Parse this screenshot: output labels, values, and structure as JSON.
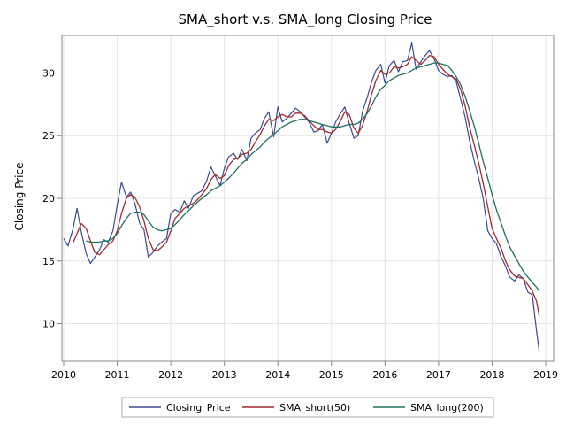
{
  "chart_data": {
    "type": "line",
    "title": "SMA_short v.s. SMA_long Closing Price",
    "xlabel": "",
    "ylabel": "Closing Price",
    "xlim": [
      2010.0,
      2019.0
    ],
    "ylim": [
      7.0,
      33.0
    ],
    "x_ticks": [
      "2010",
      "2011",
      "2012",
      "2013",
      "2014",
      "2015",
      "2016",
      "2017",
      "2018",
      "2019"
    ],
    "y_ticks": [
      "10",
      "15",
      "20",
      "25",
      "30"
    ],
    "grid": true,
    "legend_placement": "bottom",
    "series": [
      {
        "name": "Closing_Price",
        "color": "#3c4a92",
        "x": [
          2010.0,
          2010.08,
          2010.17,
          2010.25,
          2010.33,
          2010.42,
          2010.5,
          2010.58,
          2010.67,
          2010.75,
          2010.83,
          2010.92,
          2011.0,
          2011.08,
          2011.17,
          2011.25,
          2011.33,
          2011.42,
          2011.5,
          2011.58,
          2011.67,
          2011.75,
          2011.83,
          2011.92,
          2012.0,
          2012.08,
          2012.17,
          2012.25,
          2012.33,
          2012.42,
          2012.5,
          2012.58,
          2012.67,
          2012.75,
          2012.83,
          2012.92,
          2013.0,
          2013.08,
          2013.17,
          2013.25,
          2013.33,
          2013.42,
          2013.5,
          2013.58,
          2013.67,
          2013.75,
          2013.83,
          2013.92,
          2014.0,
          2014.08,
          2014.17,
          2014.25,
          2014.33,
          2014.42,
          2014.5,
          2014.58,
          2014.67,
          2014.75,
          2014.83,
          2014.92,
          2015.0,
          2015.08,
          2015.17,
          2015.25,
          2015.33,
          2015.42,
          2015.5,
          2015.58,
          2015.67,
          2015.75,
          2015.83,
          2015.92,
          2016.0,
          2016.08,
          2016.17,
          2016.25,
          2016.33,
          2016.42,
          2016.5,
          2016.58,
          2016.67,
          2016.75,
          2016.83,
          2016.92,
          2017.0,
          2017.08,
          2017.17,
          2017.25,
          2017.33,
          2017.42,
          2017.5,
          2017.58,
          2017.67,
          2017.75,
          2017.83,
          2017.92,
          2018.0,
          2018.08,
          2018.17,
          2018.25,
          2018.33,
          2018.42,
          2018.5,
          2018.58,
          2018.67,
          2018.75,
          2018.83,
          2018.88
        ],
        "values": [
          16.8,
          16.2,
          17.5,
          19.2,
          17.3,
          15.6,
          14.8,
          15.3,
          15.9,
          16.7,
          16.5,
          17.4,
          19.5,
          21.3,
          20.1,
          20.5,
          19.6,
          18.0,
          17.5,
          15.3,
          15.7,
          16.2,
          16.5,
          16.8,
          18.8,
          19.1,
          18.9,
          19.8,
          19.2,
          20.2,
          20.4,
          20.6,
          21.4,
          22.5,
          21.8,
          21.0,
          22.4,
          23.3,
          23.6,
          23.1,
          23.9,
          23.0,
          24.8,
          25.2,
          25.5,
          26.4,
          26.9,
          24.9,
          27.3,
          26.1,
          26.4,
          26.8,
          27.2,
          26.9,
          26.5,
          26.1,
          25.3,
          25.4,
          25.9,
          24.4,
          25.2,
          26.1,
          26.8,
          27.3,
          26.0,
          24.8,
          25.0,
          26.9,
          28.1,
          29.3,
          30.2,
          30.7,
          29.2,
          30.6,
          31.0,
          30.1,
          30.9,
          31.0,
          32.4,
          30.3,
          30.9,
          31.4,
          31.8,
          31.1,
          30.2,
          29.9,
          29.7,
          29.8,
          29.3,
          27.8,
          26.4,
          24.6,
          22.9,
          21.6,
          20.1,
          17.4,
          16.8,
          16.4,
          15.3,
          14.6,
          13.7,
          13.4,
          13.9,
          13.6,
          12.5,
          12.3,
          9.4,
          7.8
        ]
      },
      {
        "name": "SMA_short(50)",
        "color": "#a32a2a",
        "x": [
          2010.17,
          2010.25,
          2010.33,
          2010.42,
          2010.5,
          2010.58,
          2010.67,
          2010.75,
          2010.83,
          2010.92,
          2011.0,
          2011.08,
          2011.17,
          2011.25,
          2011.33,
          2011.42,
          2011.5,
          2011.58,
          2011.67,
          2011.75,
          2011.83,
          2011.92,
          2012.0,
          2012.08,
          2012.17,
          2012.25,
          2012.33,
          2012.42,
          2012.5,
          2012.58,
          2012.67,
          2012.75,
          2012.83,
          2012.92,
          2013.0,
          2013.08,
          2013.17,
          2013.25,
          2013.33,
          2013.42,
          2013.5,
          2013.58,
          2013.67,
          2013.75,
          2013.83,
          2013.92,
          2014.0,
          2014.08,
          2014.17,
          2014.25,
          2014.33,
          2014.42,
          2014.5,
          2014.58,
          2014.67,
          2014.75,
          2014.83,
          2014.92,
          2015.0,
          2015.08,
          2015.17,
          2015.25,
          2015.33,
          2015.42,
          2015.5,
          2015.58,
          2015.67,
          2015.75,
          2015.83,
          2015.92,
          2016.0,
          2016.08,
          2016.17,
          2016.25,
          2016.33,
          2016.42,
          2016.5,
          2016.58,
          2016.67,
          2016.75,
          2016.83,
          2016.92,
          2017.0,
          2017.08,
          2017.17,
          2017.25,
          2017.33,
          2017.42,
          2017.5,
          2017.58,
          2017.67,
          2017.75,
          2017.83,
          2017.92,
          2018.0,
          2018.08,
          2018.17,
          2018.25,
          2018.33,
          2018.42,
          2018.5,
          2018.58,
          2018.67,
          2018.75,
          2018.83,
          2018.88
        ],
        "values": [
          16.4,
          17.2,
          18.0,
          17.6,
          16.6,
          15.7,
          15.5,
          15.9,
          16.3,
          16.6,
          17.4,
          18.8,
          20.0,
          20.3,
          20.1,
          19.3,
          18.2,
          16.8,
          15.9,
          15.8,
          16.1,
          16.5,
          17.4,
          18.4,
          18.8,
          19.2,
          19.4,
          19.6,
          19.9,
          20.3,
          20.8,
          21.5,
          21.9,
          21.6,
          21.8,
          22.6,
          23.1,
          23.2,
          23.5,
          23.6,
          23.9,
          24.5,
          25.1,
          25.8,
          26.3,
          26.2,
          26.5,
          26.7,
          26.5,
          26.5,
          26.8,
          26.8,
          26.6,
          26.2,
          25.8,
          25.5,
          25.5,
          25.3,
          25.2,
          25.5,
          26.2,
          26.9,
          26.7,
          25.6,
          25.2,
          25.8,
          27.0,
          28.3,
          29.4,
          30.2,
          29.9,
          30.0,
          30.5,
          30.4,
          30.5,
          30.7,
          31.3,
          31.0,
          30.7,
          31.0,
          31.4,
          31.3,
          30.7,
          30.3,
          29.9,
          29.7,
          29.5,
          28.6,
          27.3,
          25.7,
          24.2,
          22.8,
          21.3,
          19.3,
          17.6,
          16.8,
          16.0,
          15.0,
          14.3,
          13.8,
          13.7,
          13.6,
          13.1,
          12.6,
          11.8,
          10.6
        ]
      },
      {
        "name": "SMA_long(200)",
        "color": "#1f7060",
        "x": [
          2010.42,
          2010.5,
          2010.58,
          2010.67,
          2010.75,
          2010.83,
          2010.92,
          2011.0,
          2011.08,
          2011.17,
          2011.25,
          2011.33,
          2011.42,
          2011.5,
          2011.58,
          2011.67,
          2011.75,
          2011.83,
          2011.92,
          2012.0,
          2012.08,
          2012.17,
          2012.25,
          2012.33,
          2012.42,
          2012.5,
          2012.58,
          2012.67,
          2012.75,
          2012.83,
          2012.92,
          2013.0,
          2013.08,
          2013.17,
          2013.25,
          2013.33,
          2013.42,
          2013.5,
          2013.58,
          2013.67,
          2013.75,
          2013.83,
          2013.92,
          2014.0,
          2014.08,
          2014.17,
          2014.25,
          2014.33,
          2014.42,
          2014.5,
          2014.58,
          2014.67,
          2014.75,
          2014.83,
          2014.92,
          2015.0,
          2015.08,
          2015.17,
          2015.25,
          2015.33,
          2015.42,
          2015.5,
          2015.58,
          2015.67,
          2015.75,
          2015.83,
          2015.92,
          2016.0,
          2016.08,
          2016.17,
          2016.25,
          2016.33,
          2016.42,
          2016.5,
          2016.58,
          2016.67,
          2016.75,
          2016.83,
          2016.92,
          2017.0,
          2017.08,
          2017.17,
          2017.25,
          2017.33,
          2017.42,
          2017.5,
          2017.58,
          2017.67,
          2017.75,
          2017.83,
          2017.92,
          2018.0,
          2018.08,
          2018.17,
          2018.25,
          2018.33,
          2018.42,
          2018.5,
          2018.58,
          2018.67,
          2018.75,
          2018.83,
          2018.88
        ],
        "values": [
          16.6,
          16.5,
          16.5,
          16.5,
          16.6,
          16.6,
          16.8,
          17.2,
          17.8,
          18.4,
          18.8,
          18.9,
          18.9,
          18.7,
          18.2,
          17.7,
          17.5,
          17.4,
          17.5,
          17.6,
          17.9,
          18.3,
          18.7,
          19.0,
          19.4,
          19.7,
          20.0,
          20.3,
          20.6,
          20.8,
          21.0,
          21.3,
          21.6,
          22.0,
          22.4,
          22.8,
          23.1,
          23.5,
          23.8,
          24.1,
          24.5,
          24.8,
          25.1,
          25.4,
          25.7,
          25.9,
          26.1,
          26.2,
          26.3,
          26.3,
          26.2,
          26.1,
          26.0,
          25.9,
          25.8,
          25.7,
          25.7,
          25.7,
          25.8,
          25.9,
          25.9,
          26.0,
          26.3,
          26.8,
          27.4,
          28.1,
          28.7,
          29.0,
          29.4,
          29.6,
          29.8,
          29.9,
          30.0,
          30.2,
          30.4,
          30.5,
          30.6,
          30.7,
          30.8,
          30.8,
          30.7,
          30.6,
          30.2,
          29.7,
          29.0,
          28.1,
          27.0,
          25.7,
          24.4,
          23.0,
          21.6,
          20.3,
          19.1,
          18.0,
          17.0,
          16.1,
          15.4,
          14.8,
          14.2,
          13.7,
          13.3,
          12.9,
          12.6
        ]
      }
    ]
  }
}
